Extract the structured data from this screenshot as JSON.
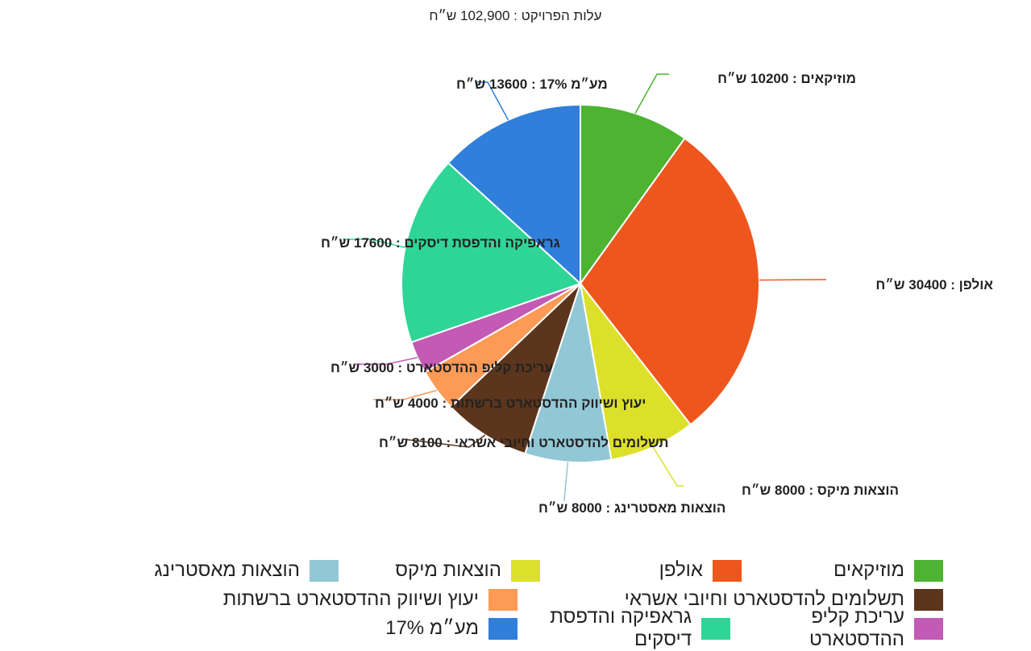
{
  "chart_data": {
    "type": "pie",
    "title": "עלות הפרויקט : 102,900 ש״ח",
    "slices": [
      {
        "name": "מוזיקאים",
        "value": 10200,
        "color": "#4db331",
        "label": "מוזיקאים : 10200 ש״ח"
      },
      {
        "name": "אולפן",
        "value": 30400,
        "color": "#ef561d",
        "label": "אולפן : 30400 ש״ח"
      },
      {
        "name": "הוצאות מיקס",
        "value": 8000,
        "color": "#dde02b",
        "label": "הוצאות מיקס : 8000 ש״ח"
      },
      {
        "name": "הוצאות מאסטרינג",
        "value": 8000,
        "color": "#92c7d5",
        "label": "הוצאות מאסטרינג : 8000 ש״ח"
      },
      {
        "name": "תשלומים להדסטארט וחיובי אשראי",
        "value": 8100,
        "color": "#5b351c",
        "label": "תשלומים להדסטארט וחיובי אשראי : 8100 ש״ח"
      },
      {
        "name": "יעוץ ושיווק ההדסטארט ברשתות",
        "value": 4000,
        "color": "#fc9a56",
        "label": "יעוץ ושיווק ההדסטארט ברשתות : 4000 ש״ח"
      },
      {
        "name": "עריכת קליפ ההדסטארט",
        "value": 3000,
        "color": "#c35ab5",
        "label": "עריכת קליפ ההדסטארט : 3000 ש״ח"
      },
      {
        "name": "גראפיקה והדפסת דיסקים",
        "value": 17600,
        "color": "#2fd596",
        "label": "גראפיקה והדפסת דיסקים : 17600 ש״ח"
      },
      {
        "name": "מע״מ 17%",
        "value": 13600,
        "color": "#2f7fdb",
        "label": "מע״מ 17% : 13600 ש״ח"
      }
    ],
    "legend_position": "bottom"
  }
}
